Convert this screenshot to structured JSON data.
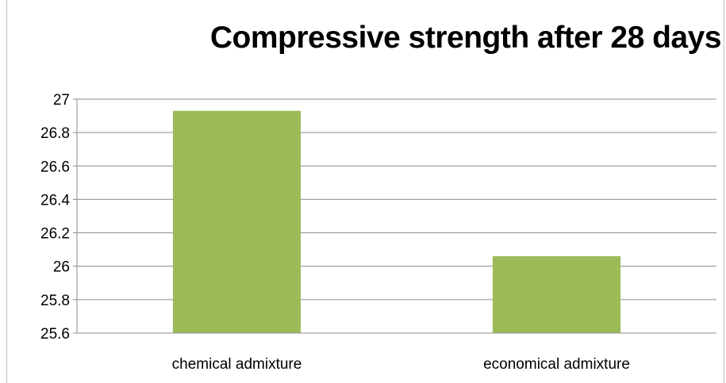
{
  "chart_data": {
    "type": "bar",
    "title": "Compressive strength after 28 days",
    "categories": [
      "chemical admixture",
      "economical admixture"
    ],
    "values": [
      26.93,
      26.06
    ],
    "ylim": [
      25.6,
      27
    ],
    "yticks": [
      "25.6",
      "25.8",
      "26",
      "26.2",
      "26.4",
      "26.6",
      "26.8",
      "27"
    ],
    "grid": true,
    "legend": "none",
    "colors": {
      "bar": "#9BBB59",
      "grid": "#8c8c8c",
      "axis": "#8c8c8c"
    }
  }
}
